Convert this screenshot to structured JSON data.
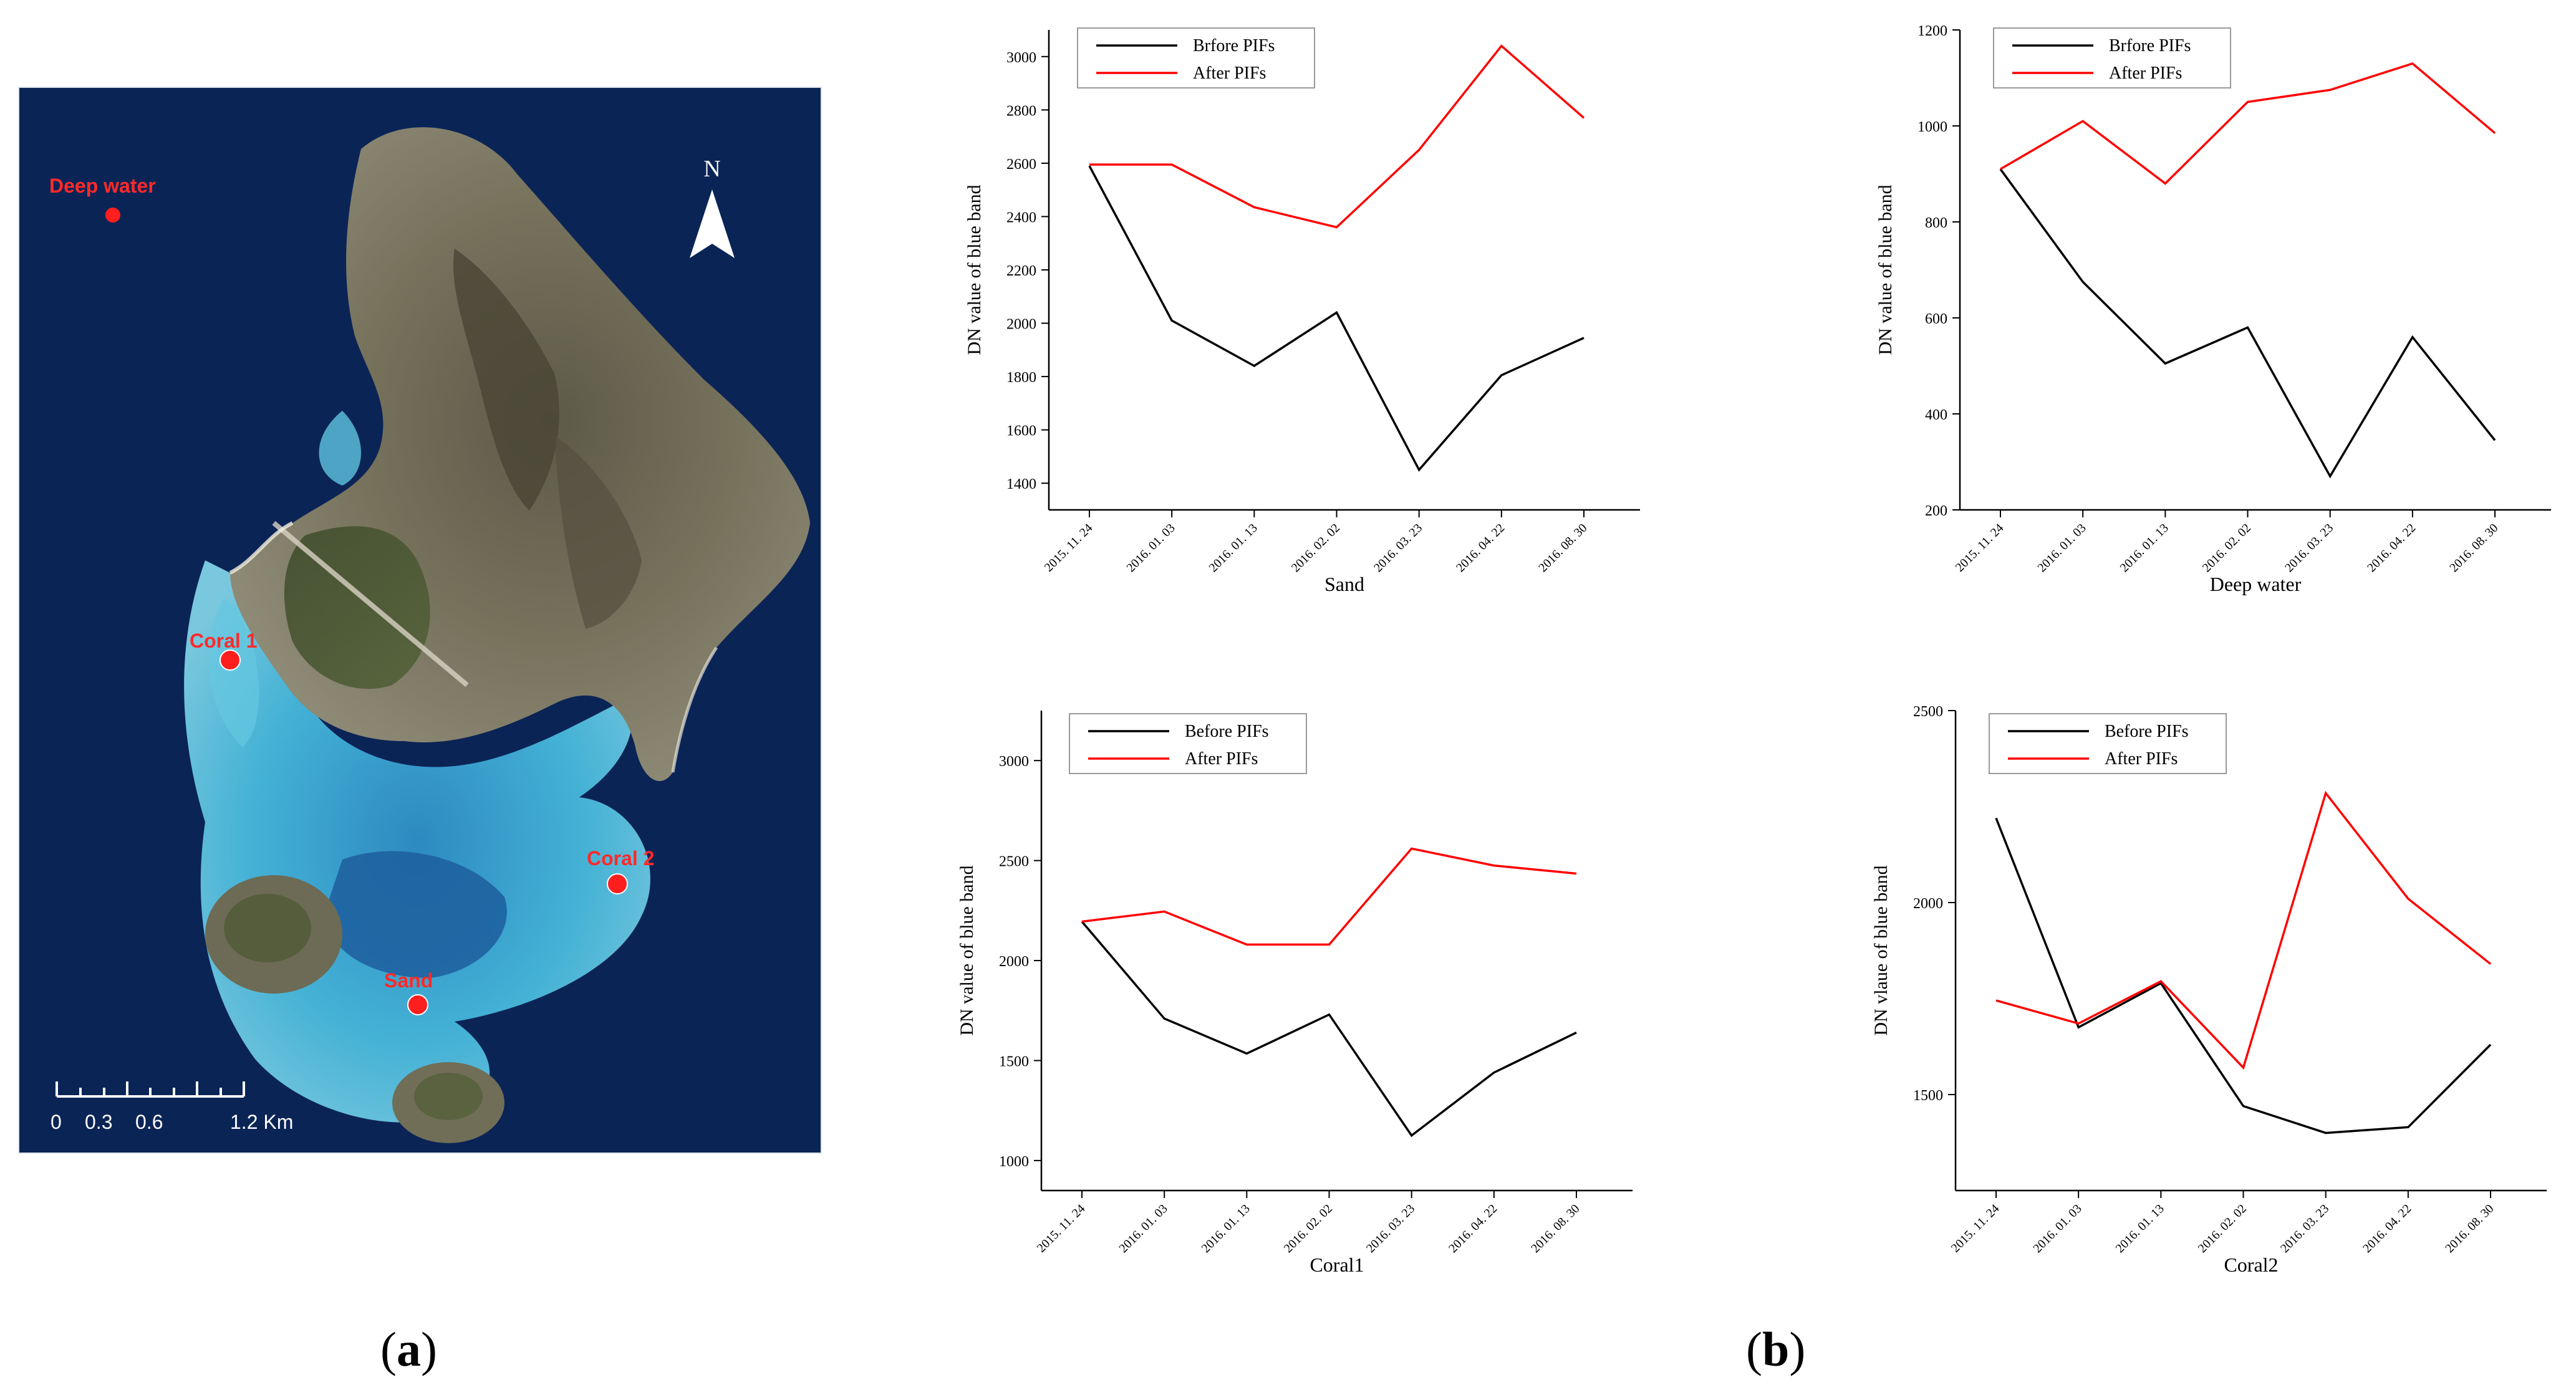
{
  "figure": {
    "panel_a_label": "a",
    "panel_b_label": "b"
  },
  "map": {
    "north_label": "N",
    "sites": [
      {
        "name": "Deep water",
        "marker_color": "#ff0000"
      },
      {
        "name": "Coral 1",
        "marker_color": "#ff0000"
      },
      {
        "name": "Coral 2",
        "marker_color": "#ff0000"
      },
      {
        "name": "Sand",
        "marker_color": "#ff0000"
      }
    ],
    "scale_bar": {
      "ticks": [
        "0",
        "0.3",
        "0.6",
        "1.2 Km"
      ]
    }
  },
  "colors": {
    "before": "#000000",
    "after": "#ff0000",
    "deep_water": "#0a1f4e",
    "shallow": "#3fb6d9",
    "land": "#6b6a55",
    "vegetation": "#4d5a36"
  },
  "chart_data": [
    {
      "type": "line",
      "xlabel": "Sand",
      "ylabel": "DN value of blue band",
      "categories": [
        "2015. 11. 24",
        "2016. 01. 03",
        "2016. 01. 13",
        "2016. 02. 02",
        "2016. 03. 23",
        "2016. 04. 22",
        "2016. 08. 30"
      ],
      "ylim": [
        1300,
        3100
      ],
      "yticks": [
        1400,
        1600,
        1800,
        2000,
        2200,
        2400,
        2600,
        2800,
        3000
      ],
      "legend_position": "top-left",
      "series": [
        {
          "name": "Brfore PIFs",
          "color": "#000000",
          "values": [
            2590,
            2010,
            1840,
            2040,
            1450,
            1805,
            1945
          ]
        },
        {
          "name": "After PIFs",
          "color": "#ff0000",
          "values": [
            2595,
            2595,
            2435,
            2360,
            2650,
            3040,
            2770
          ]
        }
      ]
    },
    {
      "type": "line",
      "xlabel": "Deep water",
      "ylabel": "DN value of blue band",
      "categories": [
        "2015. 11. 24",
        "2016. 01. 03",
        "2016. 01. 13",
        "2016. 02. 02",
        "2016. 03. 23",
        "2016. 04. 22",
        "2016. 08. 30"
      ],
      "ylim": [
        200,
        1200
      ],
      "yticks": [
        200,
        400,
        600,
        800,
        1000,
        1200
      ],
      "legend_position": "top-left",
      "series": [
        {
          "name": "Brfore PIFs",
          "color": "#000000",
          "values": [
            910,
            675,
            505,
            580,
            270,
            560,
            345
          ]
        },
        {
          "name": "After PIFs",
          "color": "#ff0000",
          "values": [
            910,
            1010,
            880,
            1050,
            1075,
            1130,
            985
          ]
        }
      ]
    },
    {
      "type": "line",
      "xlabel": "Coral1",
      "ylabel": "DN value of blue band",
      "categories": [
        "2015. 11. 24",
        "2016. 01. 03",
        "2016. 01. 13",
        "2016. 02. 02",
        "2016. 03. 23",
        "2016. 04. 22",
        "2016. 08. 30"
      ],
      "ylim": [
        850,
        3250
      ],
      "yticks": [
        1000,
        1500,
        2000,
        2500,
        3000
      ],
      "legend_position": "top-left",
      "series": [
        {
          "name": "Before PIFs",
          "color": "#000000",
          "values": [
            2195,
            1710,
            1535,
            1730,
            1125,
            1440,
            1640
          ]
        },
        {
          "name": "After PIFs",
          "color": "#ff0000",
          "values": [
            2195,
            2245,
            2080,
            2080,
            2560,
            2475,
            2435
          ]
        }
      ]
    },
    {
      "type": "line",
      "xlabel": "Coral2",
      "ylabel": "DN vlaue of blue band",
      "categories": [
        "2015. 11. 24",
        "2016. 01. 03",
        "2016. 01. 13",
        "2016. 02. 02",
        "2016. 03. 23",
        "2016. 04. 22",
        "2016. 08. 30"
      ],
      "ylim": [
        1250,
        2500
      ],
      "yticks": [
        1500,
        2000,
        2500
      ],
      "legend_position": "top-left",
      "series": [
        {
          "name": "Before PIFs",
          "color": "#000000",
          "values": [
            2220,
            1675,
            1790,
            1470,
            1400,
            1415,
            1630
          ]
        },
        {
          "name": "After PIFs",
          "color": "#ff0000",
          "values": [
            1745,
            1685,
            1795,
            1570,
            2285,
            2010,
            1840
          ]
        }
      ]
    }
  ]
}
